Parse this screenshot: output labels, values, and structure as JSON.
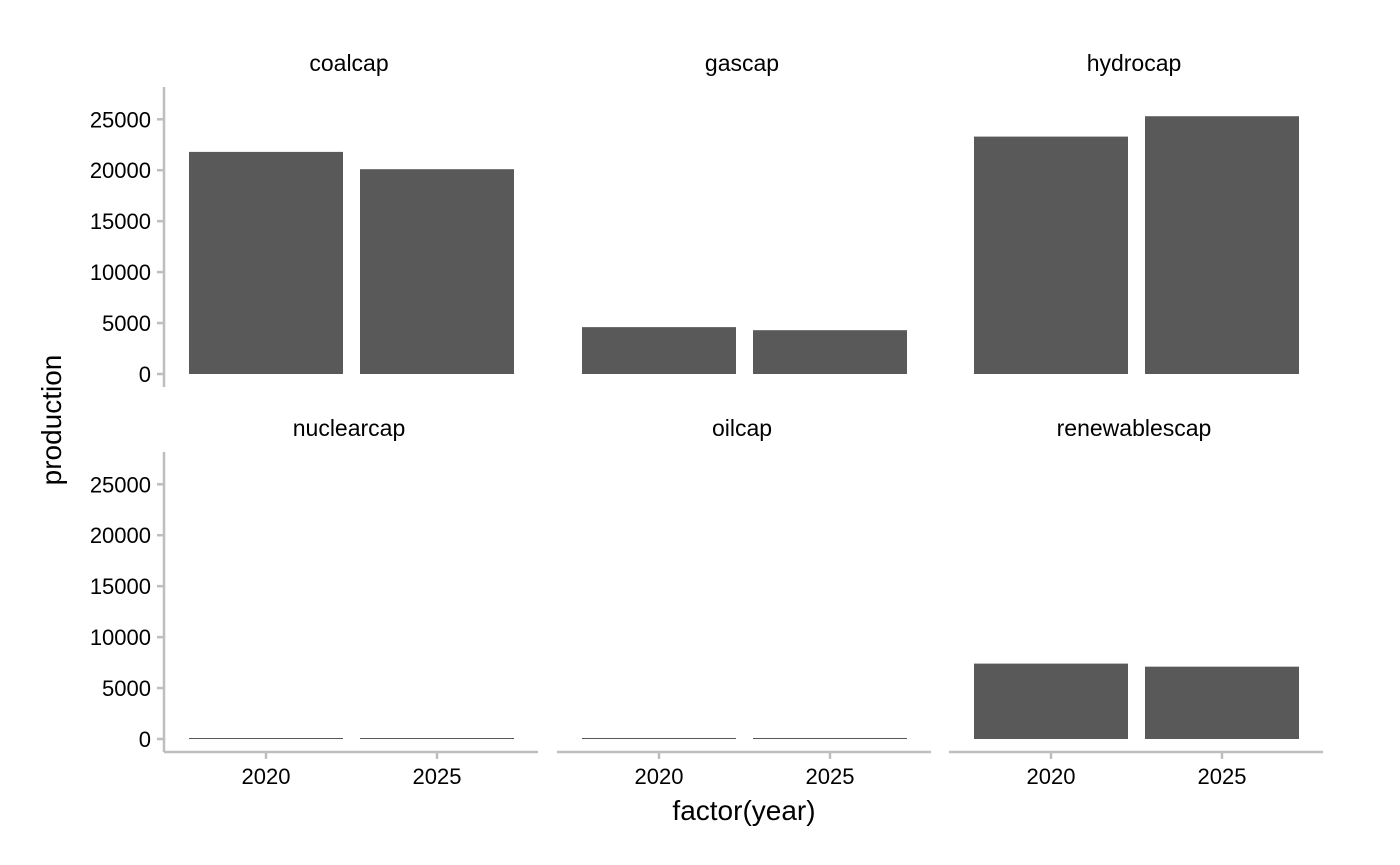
{
  "chart_data": {
    "type": "bar",
    "xlabel": "factor(year)",
    "ylabel": "production",
    "categories": [
      "2020",
      "2025"
    ],
    "ylim": [
      0,
      26500
    ],
    "yticks": [
      0,
      5000,
      10000,
      15000,
      20000,
      25000
    ],
    "grid": false,
    "bar_color": "#595959",
    "axis_color": "#BEBEBE",
    "panels": [
      {
        "name": "coalcap",
        "values": [
          21800,
          20100
        ]
      },
      {
        "name": "gascap",
        "values": [
          4600,
          4300
        ]
      },
      {
        "name": "hydrocap",
        "values": [
          23300,
          25300
        ]
      },
      {
        "name": "nuclearcap",
        "values": [
          0,
          0
        ]
      },
      {
        "name": "oilcap",
        "values": [
          100,
          100
        ]
      },
      {
        "name": "renewablescap",
        "values": [
          7400,
          7100
        ]
      }
    ]
  }
}
